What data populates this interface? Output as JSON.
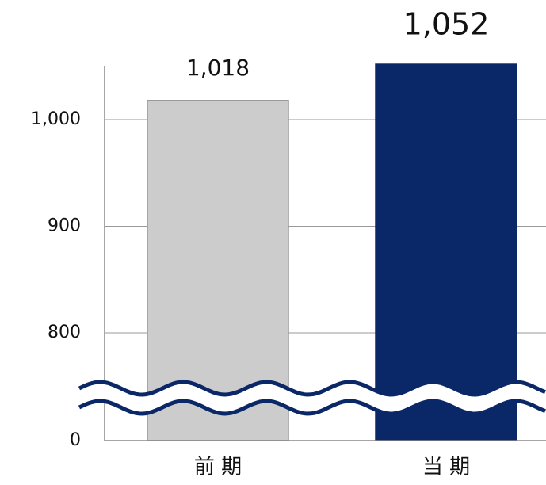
{
  "chart_data": {
    "type": "bar",
    "categories": [
      "前 期",
      "当 期"
    ],
    "values": [
      1018,
      1052
    ],
    "value_labels": [
      "1,018",
      "1,052"
    ],
    "colors": [
      "#cccccc",
      "#0a2868"
    ],
    "ylim": [
      0,
      1055
    ],
    "yticks": [
      0,
      800,
      900,
      {
        "value": 1000,
        "label": "1,000"
      }
    ],
    "axis_break": true,
    "grid": true
  }
}
